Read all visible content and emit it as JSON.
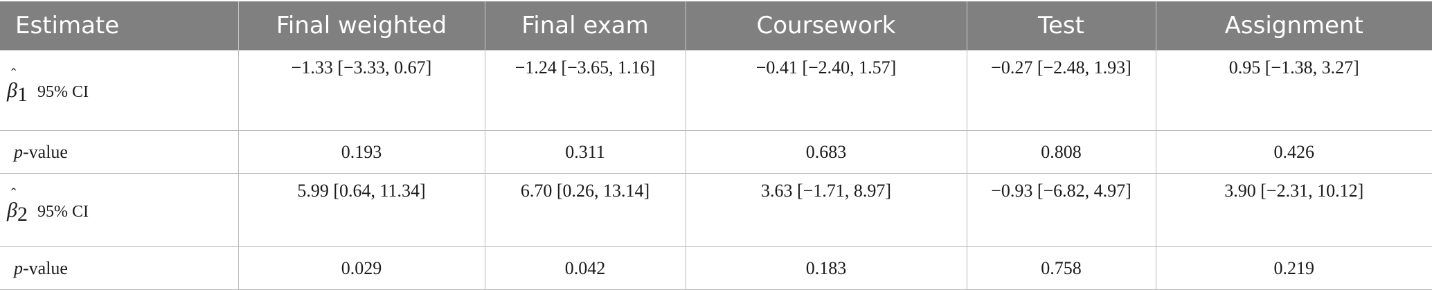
{
  "table": {
    "headers": [
      "Estimate",
      "Final weighted",
      "Final exam",
      "Coursework",
      "Test",
      "Assignment"
    ],
    "rows": [
      {
        "symbol": "β",
        "subscript": "1",
        "ci_label": "95% CI",
        "values": [
          "−1.33 [−3.33, 0.67]",
          "−1.24 [−3.65, 1.16]",
          "−0.41 [−2.40, 1.57]",
          "−0.27 [−2.48, 1.93]",
          "0.95 [−1.38, 3.27]"
        ]
      },
      {
        "label_italic": "p",
        "label_rest": "-value",
        "values": [
          "0.193",
          "0.311",
          "0.683",
          "0.808",
          "0.426"
        ]
      },
      {
        "symbol": "β",
        "subscript": "2",
        "ci_label": "95% CI",
        "values": [
          "5.99 [0.64, 11.34]",
          "6.70 [0.26, 13.14]",
          "3.63 [−1.71, 8.97]",
          "−0.93 [−6.82, 4.97]",
          "3.90 [−2.31, 10.12]"
        ]
      },
      {
        "label_italic": "p",
        "label_rest": "-value",
        "values": [
          "0.029",
          "0.042",
          "0.183",
          "0.758",
          "0.219"
        ]
      }
    ]
  }
}
